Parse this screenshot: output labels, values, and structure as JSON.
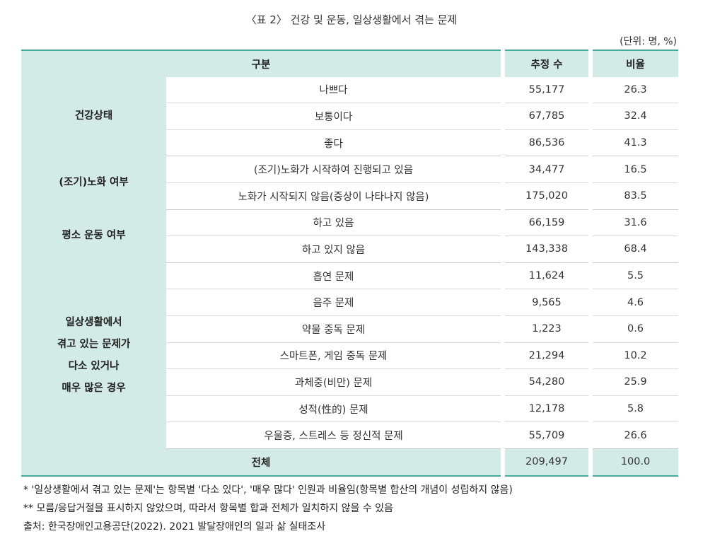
{
  "title": "〈표 2〉 건강 및 운동, 일상생활에서 겪는 문제",
  "unit": "(단위: 명, %)",
  "header": {
    "category": "구분",
    "count": "추정 수",
    "ratio": "비율"
  },
  "groups": [
    {
      "label": "건강상태",
      "rows": [
        {
          "item": "나쁘다",
          "count": "55,177",
          "ratio": "26.3"
        },
        {
          "item": "보통이다",
          "count": "67,785",
          "ratio": "32.4"
        },
        {
          "item": "좋다",
          "count": "86,536",
          "ratio": "41.3"
        }
      ]
    },
    {
      "label": "(조기)노화 여부",
      "rows": [
        {
          "item": "(조기)노화가 시작하여 진행되고 있음",
          "count": "34,477",
          "ratio": "16.5"
        },
        {
          "item": "노화가 시작되지 않음(증상이 나타나지 않음)",
          "count": "175,020",
          "ratio": "83.5"
        }
      ]
    },
    {
      "label": "평소 운동 여부",
      "rows": [
        {
          "item": "하고 있음",
          "count": "66,159",
          "ratio": "31.6"
        },
        {
          "item": "하고 있지 않음",
          "count": "143,338",
          "ratio": "68.4"
        }
      ]
    },
    {
      "label_lines": [
        "일상생활에서",
        "겪고 있는 문제가",
        "다소 있거나",
        "매우 많은 경우"
      ],
      "rows": [
        {
          "item": "흡연 문제",
          "count": "11,624",
          "ratio": "5.5"
        },
        {
          "item": "음주 문제",
          "count": "9,565",
          "ratio": "4.6"
        },
        {
          "item": "약물 중독 문제",
          "count": "1,223",
          "ratio": "0.6"
        },
        {
          "item": "스마트폰, 게임 중독 문제",
          "count": "21,294",
          "ratio": "10.2"
        },
        {
          "item": "과체중(비만) 문제",
          "count": "54,280",
          "ratio": "25.9"
        },
        {
          "item": "성적(性的) 문제",
          "count": "12,178",
          "ratio": "5.8"
        },
        {
          "item": "우울증, 스트레스 등 정신적 문제",
          "count": "55,709",
          "ratio": "26.6"
        }
      ]
    }
  ],
  "total": {
    "label": "전체",
    "count": "209,497",
    "ratio": "100.0"
  },
  "notes": [
    " * '일상생활에서 겪고 있는 문제'는 항목별 '다소 있다', '매우 많다' 인원과 비율임(항목별 합산의 개념이 성립하지 않음)",
    "** 모름/응답거절을 표시하지 않았으며, 따라서 항목별 합과 전체가 일치하지 않을 수 있음",
    "출처: 한국장애인고용공단(2022). 2021 발달장애인의 일과 삶 실태조사"
  ]
}
